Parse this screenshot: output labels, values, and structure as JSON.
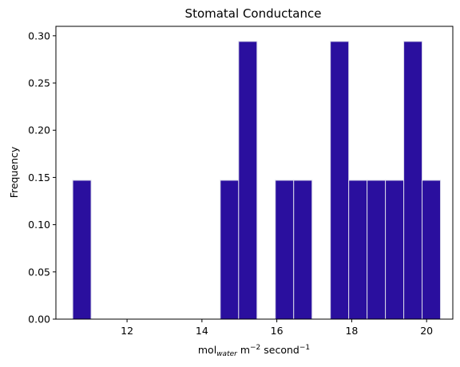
{
  "chart_data": {
    "type": "bar",
    "title": "Stomatal Conductance",
    "xlabel": {
      "base": "mol",
      "sub": "water",
      "mid": " m",
      "sup1": "−2",
      "tail": " second",
      "sup2": "−1"
    },
    "ylabel": "Frequency",
    "xlim": [
      10.1,
      20.7
    ],
    "ylim": [
      0,
      0.31
    ],
    "x_ticks": [
      12,
      14,
      16,
      18,
      20
    ],
    "x_tick_labels": [
      "12",
      "14",
      "16",
      "18",
      "20"
    ],
    "y_ticks": [
      0.0,
      0.05,
      0.1,
      0.15,
      0.2,
      0.25,
      0.3
    ],
    "y_tick_labels": [
      "0.00",
      "0.05",
      "0.10",
      "0.15",
      "0.20",
      "0.25",
      "0.30"
    ],
    "grid": false,
    "bar_color": "#2a0f9e",
    "edge_color": "#d8d8e8",
    "bars": [
      {
        "x0": 10.55,
        "x1": 11.04,
        "value": 0.147
      },
      {
        "x0": 14.49,
        "x1": 14.98,
        "value": 0.147
      },
      {
        "x0": 14.98,
        "x1": 15.47,
        "value": 0.294
      },
      {
        "x0": 15.96,
        "x1": 16.45,
        "value": 0.147
      },
      {
        "x0": 16.45,
        "x1": 16.94,
        "value": 0.147
      },
      {
        "x0": 17.43,
        "x1": 17.92,
        "value": 0.294
      },
      {
        "x0": 17.92,
        "x1": 18.41,
        "value": 0.147
      },
      {
        "x0": 18.41,
        "x1": 18.9,
        "value": 0.147
      },
      {
        "x0": 18.9,
        "x1": 19.39,
        "value": 0.147
      },
      {
        "x0": 19.39,
        "x1": 19.88,
        "value": 0.294
      },
      {
        "x0": 19.88,
        "x1": 20.37,
        "value": 0.147
      }
    ]
  }
}
